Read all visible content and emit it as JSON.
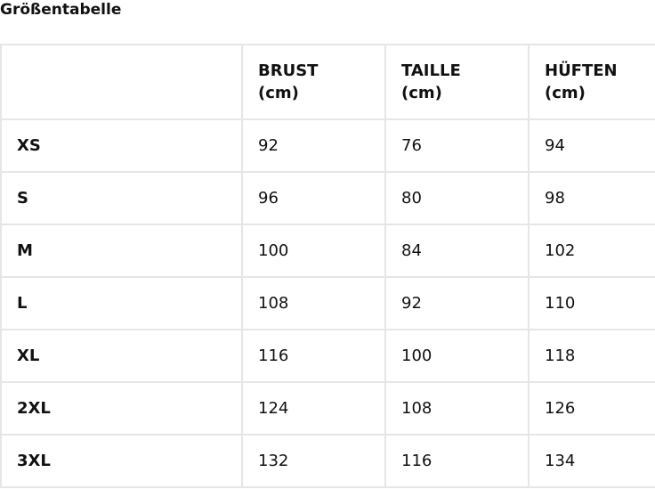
{
  "title": "Größentabelle",
  "table": {
    "headers": [
      {
        "line1": "",
        "line2": ""
      },
      {
        "line1": "BRUST",
        "line2": "(cm)"
      },
      {
        "line1": "TAILLE",
        "line2": "(cm)"
      },
      {
        "line1": "HÜFTEN",
        "line2": "(cm)"
      }
    ],
    "rows": [
      [
        "XS",
        "92",
        "76",
        "94"
      ],
      [
        "S",
        "96",
        "80",
        "98"
      ],
      [
        "M",
        "100",
        "84",
        "102"
      ],
      [
        "L",
        "108",
        "92",
        "110"
      ],
      [
        "XL",
        "116",
        "100",
        "118"
      ],
      [
        "2XL",
        "124",
        "108",
        "126"
      ],
      [
        "3XL",
        "132",
        "116",
        "134"
      ]
    ]
  }
}
